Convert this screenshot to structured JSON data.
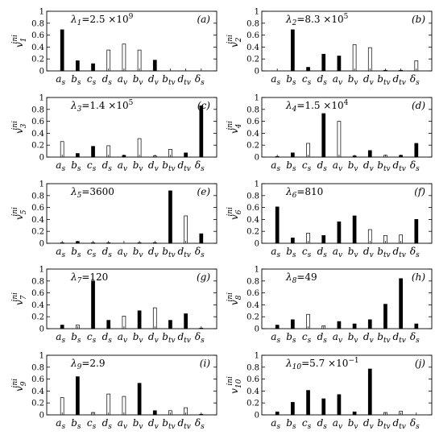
{
  "chart_data": [
    {
      "type": "bar",
      "panel": "(a)",
      "lambda_label": "λ",
      "lambda_sub": "1",
      "lambda_value": "=2.5 ×10",
      "lambda_exp": "9",
      "ylabel_base": "v",
      "ylabel_sub": "1",
      "ylabel_sup": "ini",
      "ylim": [
        0,
        1
      ],
      "yticks": [
        "0",
        "0.2",
        "0.4",
        "0.6",
        "0.8",
        "1"
      ],
      "categories": [
        "a",
        "b",
        "c",
        "d",
        "a",
        "b",
        "d",
        "b",
        "d",
        "δ"
      ],
      "category_subs": [
        "s",
        "s",
        "s",
        "s",
        "v",
        "v",
        "v",
        "tv",
        "tv",
        "s"
      ],
      "values": [
        0.69,
        0.17,
        0.12,
        0.35,
        0.45,
        0.35,
        0.18,
        0,
        0,
        0
      ],
      "filled": [
        true,
        true,
        true,
        false,
        false,
        false,
        true,
        false,
        false,
        false
      ]
    },
    {
      "type": "bar",
      "panel": "(b)",
      "lambda_label": "λ",
      "lambda_sub": "2",
      "lambda_value": "=8.3 ×10",
      "lambda_exp": "5",
      "ylabel_base": "v",
      "ylabel_sub": "2",
      "ylabel_sup": "ini",
      "ylim": [
        0,
        1
      ],
      "yticks": [
        "0",
        "0.2",
        "0.4",
        "0.6",
        "0.8",
        "1"
      ],
      "categories": [
        "a",
        "b",
        "c",
        "d",
        "a",
        "b",
        "d",
        "b",
        "d",
        "δ"
      ],
      "category_subs": [
        "s",
        "s",
        "s",
        "s",
        "v",
        "v",
        "v",
        "tv",
        "tv",
        "s"
      ],
      "values": [
        0,
        0.69,
        0.06,
        0.28,
        0.25,
        0.44,
        0.39,
        0.01,
        0.01,
        0.17
      ],
      "filled": [
        false,
        true,
        true,
        true,
        true,
        false,
        false,
        false,
        false,
        false
      ]
    },
    {
      "type": "bar",
      "panel": "(c)",
      "lambda_label": "λ",
      "lambda_sub": "3",
      "lambda_value": "=1.4 ×10",
      "lambda_exp": "5",
      "ylabel_base": "v",
      "ylabel_sub": "3",
      "ylabel_sup": "ini",
      "ylim": [
        0,
        1
      ],
      "yticks": [
        "0",
        "0.2",
        "0.4",
        "0.6",
        "0.8",
        "1"
      ],
      "categories": [
        "a",
        "b",
        "c",
        "d",
        "a",
        "b",
        "d",
        "b",
        "d",
        "δ"
      ],
      "category_subs": [
        "s",
        "s",
        "s",
        "s",
        "v",
        "v",
        "v",
        "tv",
        "tv",
        "s"
      ],
      "values": [
        0.26,
        0.06,
        0.18,
        0.19,
        0.03,
        0.31,
        0.02,
        0.13,
        0.07,
        0.86
      ],
      "filled": [
        false,
        true,
        true,
        false,
        true,
        false,
        false,
        false,
        true,
        true
      ]
    },
    {
      "type": "bar",
      "panel": "(d)",
      "lambda_label": "λ",
      "lambda_sub": "4",
      "lambda_value": "=1.5 ×10",
      "lambda_exp": "4",
      "ylabel_base": "v",
      "ylabel_sub": "4",
      "ylabel_sup": "ini",
      "ylim": [
        0,
        1
      ],
      "yticks": [
        "0",
        "0.2",
        "0.4",
        "0.6",
        "0.8",
        "1"
      ],
      "categories": [
        "a",
        "b",
        "c",
        "d",
        "a",
        "b",
        "d",
        "b",
        "d",
        "δ"
      ],
      "category_subs": [
        "s",
        "s",
        "s",
        "s",
        "v",
        "v",
        "v",
        "tv",
        "tv",
        "s"
      ],
      "values": [
        0.01,
        0.07,
        0.23,
        0.73,
        0.6,
        0.02,
        0.11,
        0.03,
        0.03,
        0.23
      ],
      "filled": [
        true,
        true,
        false,
        true,
        false,
        true,
        true,
        false,
        true,
        true
      ]
    },
    {
      "type": "bar",
      "panel": "(e)",
      "lambda_label": "λ",
      "lambda_sub": "5",
      "lambda_value": "=3600",
      "lambda_exp": "",
      "ylabel_base": "v",
      "ylabel_sub": "5",
      "ylabel_sup": "ini",
      "ylim": [
        0,
        1
      ],
      "yticks": [
        "0",
        "0.2",
        "0.4",
        "0.6",
        "0.8",
        "1"
      ],
      "categories": [
        "a",
        "b",
        "c",
        "d",
        "a",
        "b",
        "d",
        "b",
        "d",
        "δ"
      ],
      "category_subs": [
        "s",
        "s",
        "s",
        "s",
        "v",
        "v",
        "v",
        "tv",
        "tv",
        "s"
      ],
      "values": [
        0.01,
        0.03,
        0.01,
        0.01,
        0,
        0.01,
        0.01,
        0.88,
        0.46,
        0.16
      ],
      "filled": [
        true,
        true,
        true,
        true,
        false,
        true,
        true,
        true,
        false,
        true
      ]
    },
    {
      "type": "bar",
      "panel": "(f)",
      "lambda_label": "λ",
      "lambda_sub": "6",
      "lambda_value": "=810",
      "lambda_exp": "",
      "ylabel_base": "v",
      "ylabel_sub": "6",
      "ylabel_sup": "ini",
      "ylim": [
        0,
        1
      ],
      "yticks": [
        "0",
        "0.2",
        "0.4",
        "0.6",
        "0.8",
        "1"
      ],
      "categories": [
        "a",
        "b",
        "c",
        "d",
        "a",
        "b",
        "d",
        "b",
        "d",
        "δ"
      ],
      "category_subs": [
        "s",
        "s",
        "s",
        "s",
        "v",
        "v",
        "v",
        "tv",
        "tv",
        "s"
      ],
      "values": [
        0.61,
        0.09,
        0.17,
        0.13,
        0.36,
        0.46,
        0.23,
        0.13,
        0.14,
        0.4
      ],
      "filled": [
        true,
        true,
        false,
        true,
        true,
        true,
        false,
        false,
        false,
        true
      ]
    },
    {
      "type": "bar",
      "panel": "(g)",
      "lambda_label": "λ",
      "lambda_sub": "7",
      "lambda_value": "=120",
      "lambda_exp": "",
      "ylabel_base": "v",
      "ylabel_sub": "7",
      "ylabel_sup": "ini",
      "ylim": [
        0,
        1
      ],
      "yticks": [
        "0",
        "0.2",
        "0.4",
        "0.6",
        "0.8",
        "1"
      ],
      "categories": [
        "a",
        "b",
        "c",
        "d",
        "a",
        "b",
        "d",
        "b",
        "d",
        "δ"
      ],
      "category_subs": [
        "s",
        "s",
        "s",
        "s",
        "v",
        "v",
        "v",
        "tv",
        "tv",
        "s"
      ],
      "values": [
        0.06,
        0.06,
        0.8,
        0.14,
        0.21,
        0.3,
        0.35,
        0.14,
        0.25,
        0.01
      ],
      "filled": [
        true,
        false,
        true,
        true,
        false,
        true,
        false,
        true,
        true,
        false
      ]
    },
    {
      "type": "bar",
      "panel": "(h)",
      "lambda_label": "λ",
      "lambda_sub": "8",
      "lambda_value": "=49",
      "lambda_exp": "",
      "ylabel_base": "v",
      "ylabel_sub": "8",
      "ylabel_sup": "ini",
      "ylim": [
        0,
        1
      ],
      "yticks": [
        "0",
        "0.2",
        "0.4",
        "0.6",
        "0.8",
        "1"
      ],
      "categories": [
        "a",
        "b",
        "c",
        "d",
        "a",
        "b",
        "d",
        "b",
        "d",
        "δ"
      ],
      "category_subs": [
        "s",
        "s",
        "s",
        "s",
        "v",
        "v",
        "v",
        "tv",
        "tv",
        "s"
      ],
      "values": [
        0.06,
        0.15,
        0.24,
        0.05,
        0.12,
        0.08,
        0.15,
        0.41,
        0.84,
        0.08
      ],
      "filled": [
        true,
        true,
        false,
        false,
        true,
        true,
        true,
        true,
        true,
        true
      ]
    },
    {
      "type": "bar",
      "panel": "(i)",
      "lambda_label": "λ",
      "lambda_sub": "9",
      "lambda_value": "=2.9",
      "lambda_exp": "",
      "ylabel_base": "v",
      "ylabel_sub": "9",
      "ylabel_sup": "ini",
      "ylim": [
        0,
        1
      ],
      "yticks": [
        "0",
        "0.2",
        "0.4",
        "0.6",
        "0.8",
        "1"
      ],
      "categories": [
        "a",
        "b",
        "c",
        "d",
        "a",
        "b",
        "d",
        "b",
        "d",
        "δ"
      ],
      "category_subs": [
        "s",
        "s",
        "s",
        "s",
        "v",
        "v",
        "v",
        "tv",
        "tv",
        "s"
      ],
      "values": [
        0.29,
        0.64,
        0.04,
        0.35,
        0.31,
        0.53,
        0.07,
        0.07,
        0.12,
        0.01
      ],
      "filled": [
        false,
        true,
        false,
        false,
        false,
        true,
        true,
        false,
        false,
        false
      ]
    },
    {
      "type": "bar",
      "panel": "(j)",
      "lambda_label": "λ",
      "lambda_sub": "10",
      "lambda_value": "=5.7 ×10",
      "lambda_exp": "−1",
      "ylabel_base": "v",
      "ylabel_sub": "10",
      "ylabel_sup": "ini",
      "ylim": [
        0,
        1
      ],
      "yticks": [
        "0",
        "0.2",
        "0.4",
        "0.6",
        "0.8",
        "1"
      ],
      "categories": [
        "a",
        "b",
        "c",
        "d",
        "a",
        "b",
        "d",
        "b",
        "d",
        "δ"
      ],
      "category_subs": [
        "s",
        "s",
        "s",
        "s",
        "v",
        "v",
        "v",
        "tv",
        "tv",
        "s"
      ],
      "values": [
        0.05,
        0.21,
        0.41,
        0.27,
        0.34,
        0.05,
        0.77,
        0.04,
        0.06,
        0
      ],
      "filled": [
        true,
        true,
        true,
        true,
        true,
        true,
        true,
        false,
        false,
        false
      ]
    }
  ]
}
